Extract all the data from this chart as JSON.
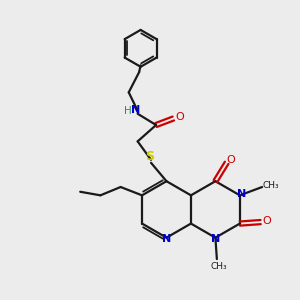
{
  "background_color": "#ececec",
  "bond_color": "#1a1a1a",
  "nitrogen_color": "#0000cc",
  "oxygen_color": "#cc0000",
  "sulfur_color": "#cccc00",
  "hydrogen_color": "#2e8b57",
  "figsize": [
    3.0,
    3.0
  ],
  "dpi": 100,
  "xlim": [
    0,
    10
  ],
  "ylim": [
    0,
    10
  ]
}
